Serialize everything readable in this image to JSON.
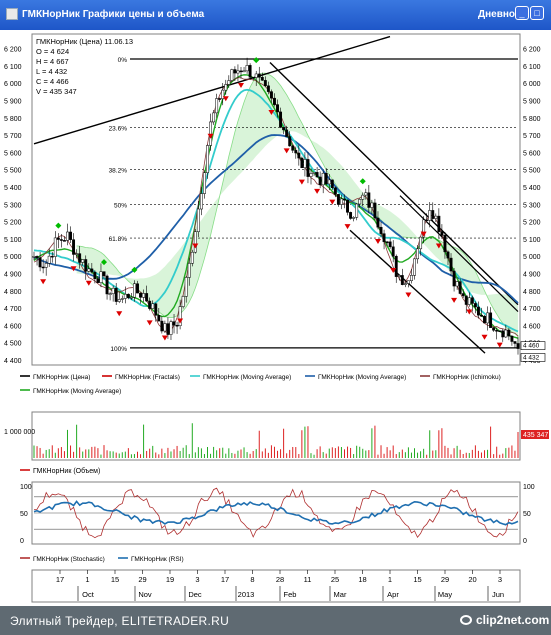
{
  "window": {
    "title": "ГМКНорНик Графики цены и объема",
    "period": "Дневной"
  },
  "ohlc": {
    "header": "ГМКНорНик (Цена) 11.06.13",
    "open": "O = 4 624",
    "high": "H = 4 667",
    "low": "L = 4 432",
    "close": "C = 4 466",
    "volume": "V = 435 347"
  },
  "price_panel": {
    "y_ticks": [
      "6 200",
      "6 100",
      "6 000",
      "5 900",
      "5 800",
      "5 700",
      "5 600",
      "5 500",
      "5 400",
      "5 300",
      "5 200",
      "5 100",
      "5 000",
      "4 900",
      "4 800",
      "4 700",
      "4 600",
      "4 500",
      "4 400"
    ],
    "right_markers": [
      {
        "label": "4 460",
        "value": 4460,
        "color": "#000000"
      },
      {
        "label": "4 432",
        "value": 4432,
        "color": "#000000"
      }
    ],
    "fib_levels": [
      {
        "label": "0%",
        "value": 6140
      },
      {
        "label": "23.6%",
        "value": 5745
      },
      {
        "label": "38.2%",
        "value": 5500
      },
      {
        "label": "50%",
        "value": 5300
      },
      {
        "label": "61.8%",
        "value": 5105
      },
      {
        "label": "100%",
        "value": 4470
      }
    ]
  },
  "legend_price": [
    {
      "label": "ГМКНорНик (Цена)",
      "color": "#000000"
    },
    {
      "label": "ГМКНорНик (Fractals)",
      "color": "#cc0000"
    },
    {
      "label": "ГМКНорНик (Moving Average)",
      "color": "#33cccc"
    },
    {
      "label": "ГМКНорНик (Moving Average)",
      "color": "#1f5fa8"
    },
    {
      "label": "ГМКНорНик (Ichimoku)",
      "color": "#8b3a3a"
    },
    {
      "label": "ГМКНорНик (Moving Average)",
      "color": "#22aa22"
    }
  ],
  "volume_panel": {
    "left_label": "1 000 000",
    "right_marker": "435 347",
    "legend": {
      "label": "ГМКНорНик (Объем)",
      "color": "#cc0000"
    }
  },
  "osc_panel": {
    "y_ticks": [
      "100",
      "50",
      "0"
    ],
    "legend": [
      {
        "label": "ГМКНорНик (Stochastic)",
        "color": "#b03030"
      },
      {
        "label": "ГМКНорНик (RSI)",
        "color": "#1f6fb0"
      }
    ]
  },
  "x_axis": {
    "day_ticks": [
      "17",
      "1",
      "15",
      "29",
      "19",
      "3",
      "17",
      "8",
      "28",
      "11",
      "25",
      "18",
      "1",
      "15",
      "29",
      "20",
      "3"
    ],
    "month_labels": [
      "Oct",
      "Nov",
      "Dec",
      "2013",
      "Feb",
      "Mar",
      "Apr",
      "May",
      "Jun"
    ]
  },
  "chart_data": {
    "type": "line",
    "title": "ГМКНорНик (Цена) 11.06.13",
    "ylim_price": [
      4400,
      6250
    ],
    "ylim_osc": [
      0,
      100
    ],
    "approx_close_path": [
      5000,
      4950,
      5080,
      5120,
      5000,
      4920,
      4880,
      4780,
      4750,
      4800,
      4780,
      4680,
      4560,
      4620,
      4900,
      5300,
      5750,
      5950,
      6050,
      6100,
      6050,
      5950,
      5850,
      5700,
      5550,
      5500,
      5450,
      5400,
      5300,
      5250,
      5350,
      5250,
      5100,
      4900,
      4850,
      5100,
      5300,
      5150,
      4900,
      4750,
      4700,
      4650,
      4600,
      4560,
      4466
    ],
    "colors": {
      "price": "#000000",
      "fractal_up": "#00bb00",
      "fractal_down": "#dd0000",
      "ma_fast": "#33cccc",
      "ma_slow": "#1f5fa8",
      "ma_green": "#22aa22",
      "ichimoku": "#8b3a3a"
    }
  },
  "footer": {
    "text": "Элитный Трейдер, ELITETRADER.RU",
    "watermark": "clip2net.com"
  }
}
